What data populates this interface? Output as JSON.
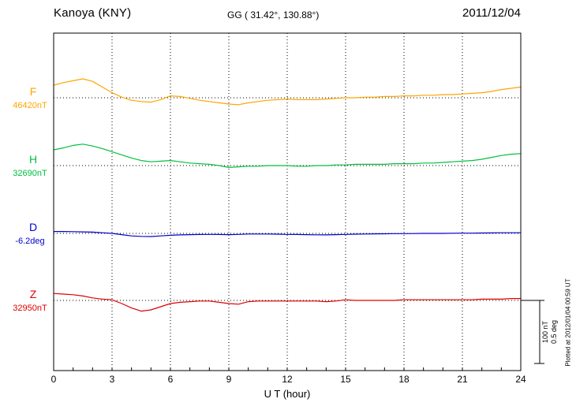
{
  "header": {
    "station": "Kanoya (KNY)",
    "coordinates": "GG ( 31.42°, 130.88°)",
    "date": "2011/12/04"
  },
  "xaxis": {
    "label": "U T (hour)",
    "min": 0,
    "max": 24,
    "ticks": [
      0,
      3,
      6,
      9,
      12,
      15,
      18,
      21,
      24
    ]
  },
  "scale_bar": {
    "nt_label": "100 nT",
    "deg_label": "0.5 deg",
    "nT_per_bar": 100,
    "deg_per_bar": 0.5
  },
  "footer_note": "Plotted at 2012/01/04 00:59 UT",
  "chart_data": {
    "type": "line",
    "title": "Kanoya (KNY) magnetogram, 2011/12/04",
    "xlabel": "U T (hour)",
    "x_range_hours": [
      0,
      24
    ],
    "grid": "vertical dotted every 3 hours; dotted horizontal baseline per component",
    "legend_position": "left margin (component letter + baseline value)",
    "x_hours": [
      0,
      0.5,
      1,
      1.5,
      2,
      2.5,
      3,
      3.5,
      4,
      4.5,
      5,
      5.5,
      6,
      6.5,
      7,
      7.5,
      8,
      8.5,
      9,
      9.5,
      10,
      10.5,
      11,
      11.5,
      12,
      12.5,
      13,
      13.5,
      14,
      14.5,
      15,
      15.5,
      16,
      16.5,
      17,
      17.5,
      18,
      18.5,
      19,
      19.5,
      20,
      20.5,
      21,
      21.5,
      22,
      22.5,
      23,
      23.5,
      24
    ],
    "series": [
      {
        "name": "F",
        "unit": "nT",
        "baseline_label": "46420nT",
        "baseline_value": 46420,
        "color": "#FFA500",
        "offsets_from_baseline": [
          20,
          24,
          27,
          30,
          26,
          17,
          8,
          1,
          -4,
          -6,
          -7,
          -3,
          3,
          2,
          -1,
          -4,
          -6,
          -8,
          -10,
          -11,
          -8,
          -6,
          -4,
          -3,
          -2,
          -3,
          -3,
          -3,
          -2,
          -1,
          0,
          0,
          1,
          1,
          2,
          2,
          3,
          3,
          4,
          4,
          5,
          5,
          6,
          7,
          8,
          10,
          13,
          15,
          17
        ]
      },
      {
        "name": "H",
        "unit": "nT",
        "baseline_label": "32690nT",
        "baseline_value": 32690,
        "color": "#00C040",
        "offsets_from_baseline": [
          25,
          28,
          32,
          34,
          31,
          27,
          22,
          17,
          12,
          8,
          6,
          7,
          8,
          6,
          4,
          3,
          2,
          0,
          -3,
          -2,
          -1,
          -1,
          0,
          0,
          0,
          -1,
          -1,
          0,
          0,
          1,
          1,
          2,
          2,
          2,
          2,
          3,
          3,
          3,
          4,
          4,
          5,
          6,
          7,
          8,
          10,
          13,
          16,
          18,
          19
        ]
      },
      {
        "name": "D",
        "unit": "deg",
        "baseline_label": "-6.2deg",
        "baseline_value": -6.2,
        "color": "#0000CC",
        "offsets_from_baseline": [
          0.015,
          0.015,
          0.014,
          0.012,
          0.01,
          0.005,
          0,
          -0.01,
          -0.02,
          -0.024,
          -0.025,
          -0.02,
          -0.015,
          -0.012,
          -0.01,
          -0.009,
          -0.008,
          -0.009,
          -0.01,
          -0.008,
          -0.005,
          -0.005,
          -0.005,
          -0.006,
          -0.008,
          -0.009,
          -0.01,
          -0.011,
          -0.012,
          -0.01,
          -0.008,
          -0.006,
          -0.005,
          -0.004,
          -0.003,
          -0.002,
          -0.002,
          -0.001,
          0,
          0,
          0,
          0.001,
          0.002,
          0.002,
          0.003,
          0.004,
          0.005,
          0.005,
          0.005
        ]
      },
      {
        "name": "Z",
        "unit": "nT",
        "baseline_label": "32950nT",
        "baseline_value": 32950,
        "color": "#E00000",
        "offsets_from_baseline": [
          11,
          10,
          9,
          7,
          4,
          2,
          1,
          -5,
          -12,
          -17,
          -15,
          -10,
          -5,
          -3,
          -2,
          -1,
          -1,
          -3,
          -5,
          -6,
          -2,
          -1,
          -1,
          -1,
          -1,
          -1,
          -1,
          -1,
          -2,
          -1,
          1,
          0,
          0,
          0,
          0,
          0,
          1,
          1,
          1,
          1,
          1,
          1,
          1,
          1,
          2,
          2,
          2,
          3,
          3
        ]
      }
    ]
  }
}
